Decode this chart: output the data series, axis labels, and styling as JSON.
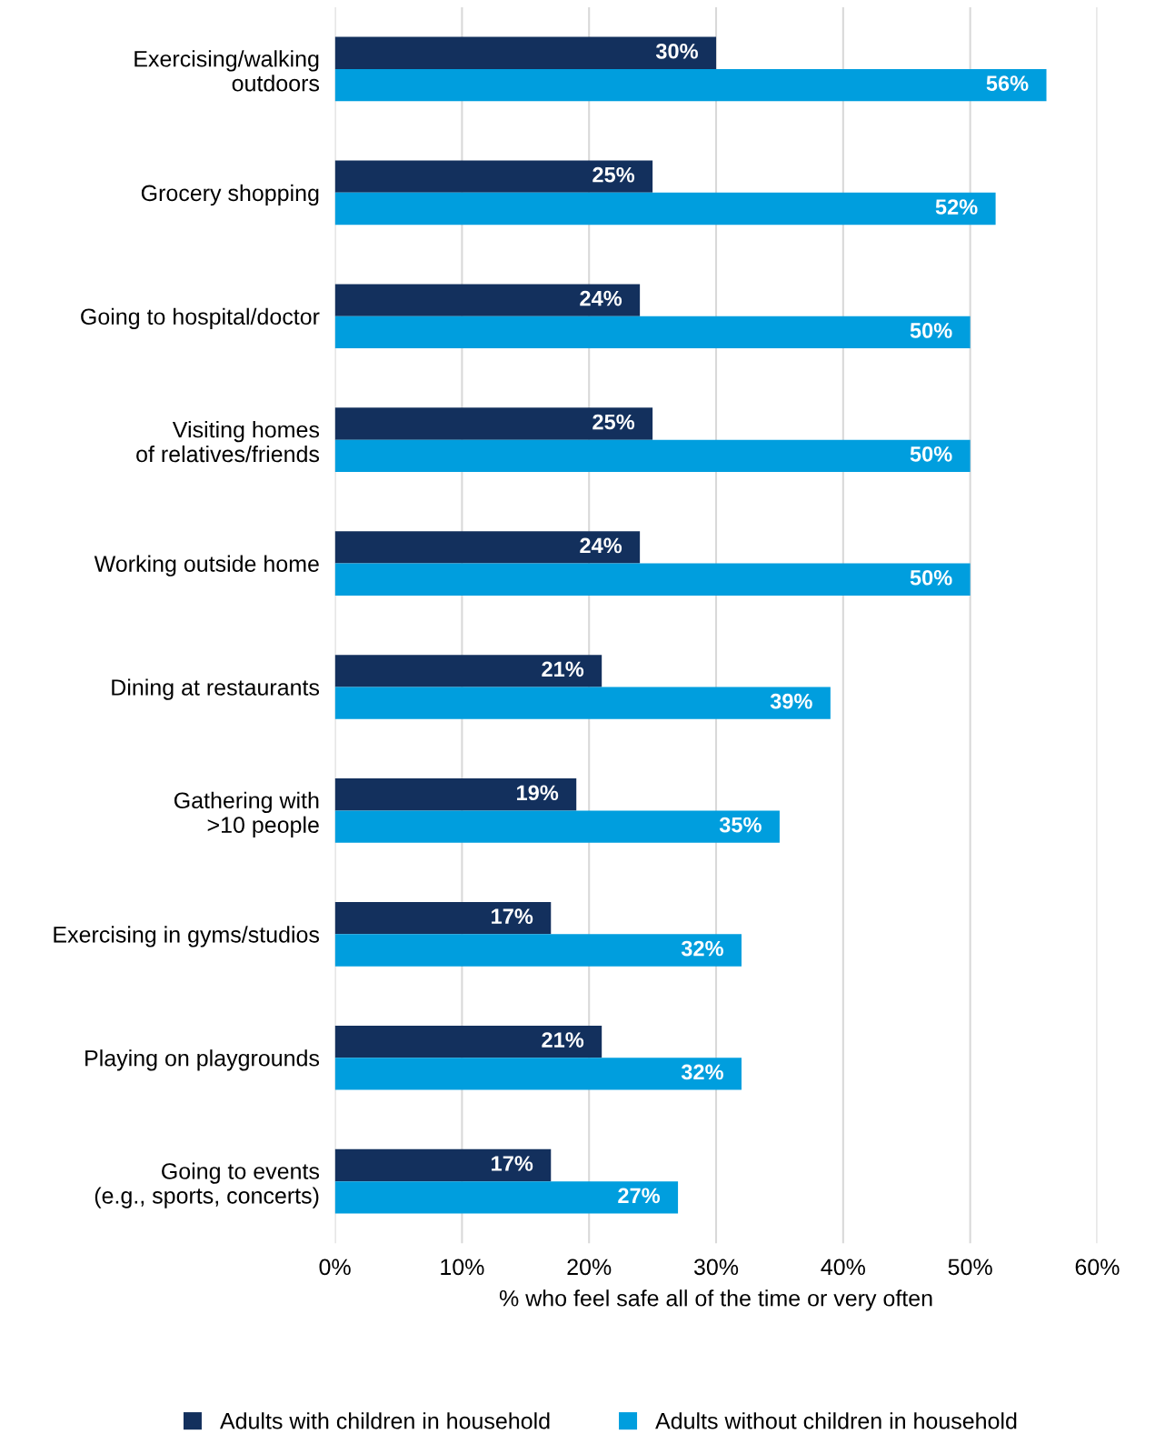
{
  "chart_data": {
    "type": "bar",
    "orientation": "horizontal",
    "categories": [
      "Exercising/walking\noutdoors",
      "Grocery shopping",
      "Going to hospital/doctor",
      "Visiting homes\nof relatives/friends",
      "Working outside home",
      "Dining at restaurants",
      "Gathering with\n>10 people",
      "Exercising in gyms/studios",
      "Playing on playgrounds",
      "Going to events\n(e.g., sports, concerts)"
    ],
    "series": [
      {
        "name": "Adults with children in household",
        "color": "#13305d",
        "values": [
          30,
          25,
          24,
          25,
          24,
          21,
          19,
          17,
          21,
          17
        ],
        "value_labels": [
          "30%",
          "25%",
          "24%",
          "25%",
          "24%",
          "21%",
          "19%",
          "17%",
          "21%",
          "17%"
        ]
      },
      {
        "name": "Adults without children in household",
        "color": "#009ede",
        "values": [
          56,
          52,
          50,
          50,
          50,
          39,
          35,
          32,
          32,
          27
        ],
        "value_labels": [
          "56%",
          "52%",
          "50%",
          "50%",
          "50%",
          "39%",
          "35%",
          "32%",
          "32%",
          "27%"
        ]
      }
    ],
    "xlabel": "% who feel safe all of the time or very often",
    "xlim": [
      0,
      60
    ],
    "xticks": [
      {
        "value": 0,
        "label": "0%"
      },
      {
        "value": 10,
        "label": "10%"
      },
      {
        "value": 20,
        "label": "20%"
      },
      {
        "value": 30,
        "label": "30%"
      },
      {
        "value": 40,
        "label": "40%"
      },
      {
        "value": 50,
        "label": "50%"
      },
      {
        "value": 60,
        "label": "60%"
      }
    ],
    "grid": "x",
    "legend": "bottom"
  }
}
